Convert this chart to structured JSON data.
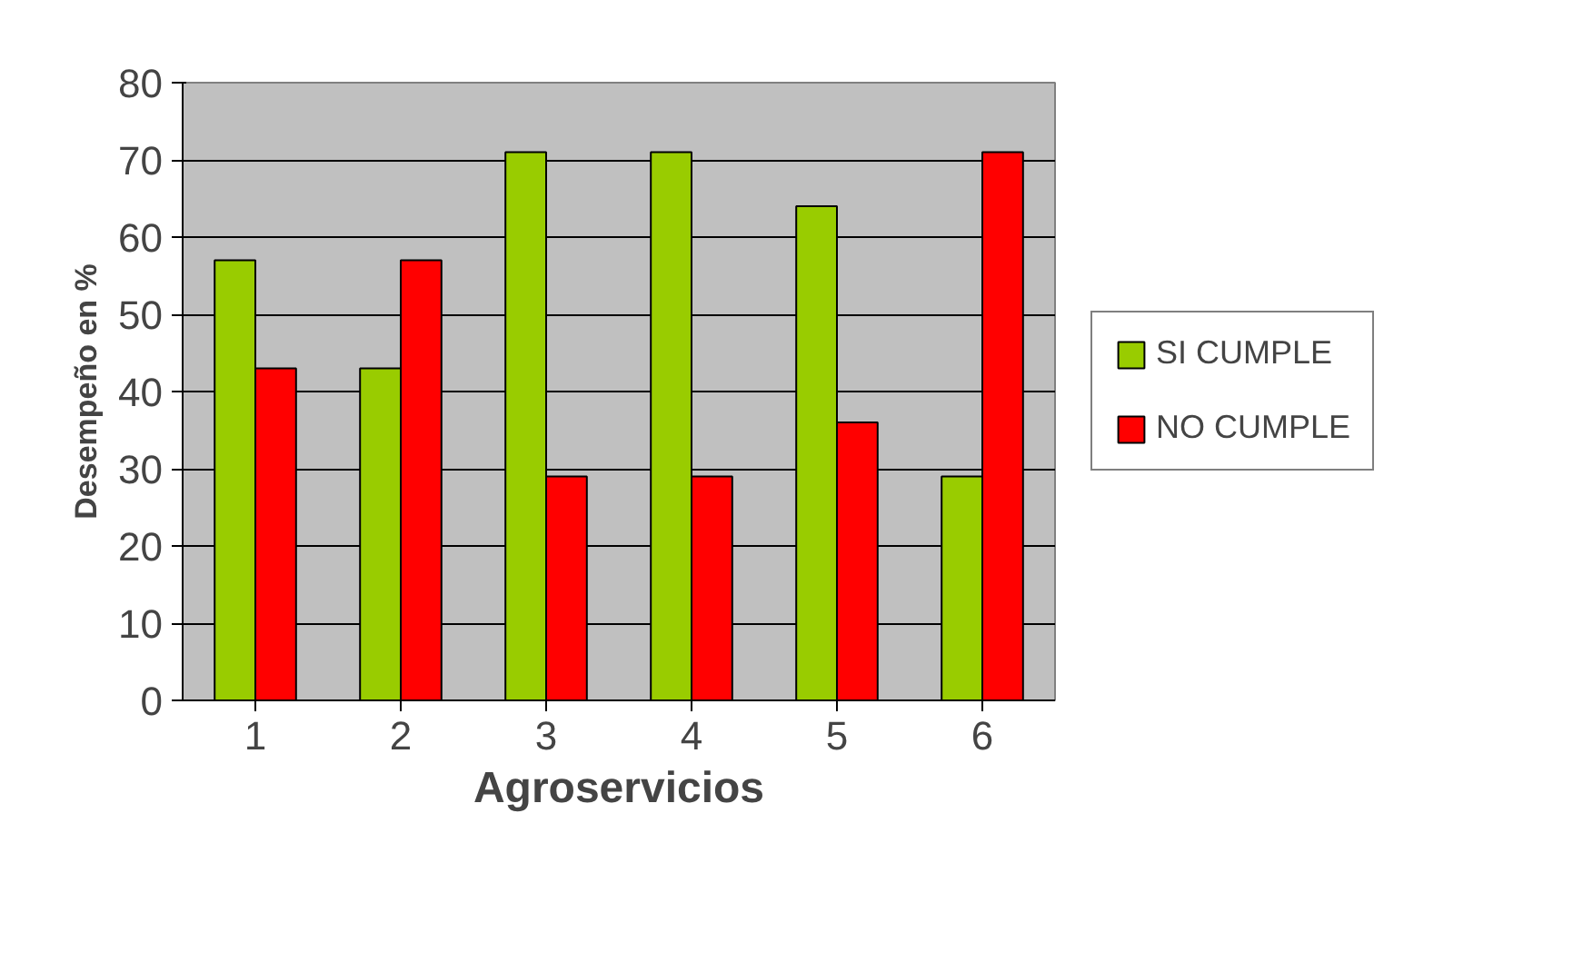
{
  "chart_data": {
    "type": "bar",
    "xlabel": "Agroservicios",
    "ylabel": "Desempeño en %",
    "categories": [
      "1",
      "2",
      "3",
      "4",
      "5",
      "6"
    ],
    "series": [
      {
        "name": "SI CUMPLE",
        "color": "#99cc00",
        "values": [
          57,
          43,
          71,
          71,
          64,
          29
        ]
      },
      {
        "name": "NO CUMPLE",
        "color": "#ff0000",
        "values": [
          43,
          57,
          29,
          29,
          36,
          71
        ]
      }
    ],
    "ylim": [
      0,
      80
    ],
    "yticks": [
      0,
      10,
      20,
      30,
      40,
      50,
      60,
      70,
      80
    ],
    "grid": "y",
    "legend": "right"
  }
}
